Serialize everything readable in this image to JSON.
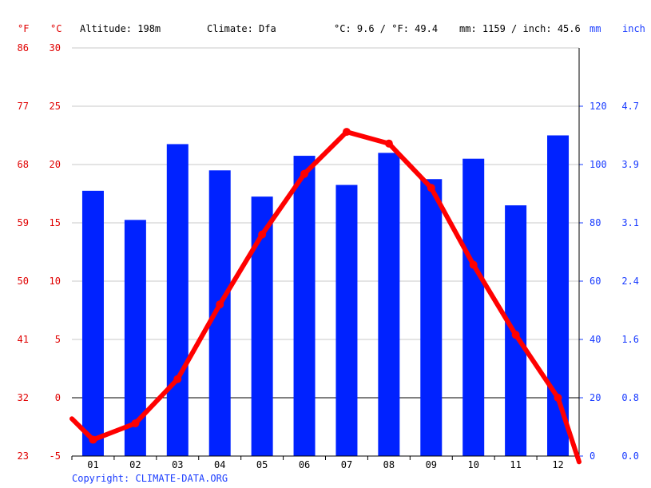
{
  "header": {
    "unit_f": "°F",
    "unit_c": "°C",
    "altitude": "Altitude: 198m",
    "climate": "Climate: Dfa",
    "temp_avg": "°C: 9.6 / °F: 49.4",
    "precip_total": "mm: 1159 / inch: 45.6",
    "unit_mm": "mm",
    "unit_inch": "inch"
  },
  "copyright": "Copyright: CLIMATE-DATA.ORG",
  "colors": {
    "temp_line": "#ff0000",
    "precip_bar": "#0022ff",
    "temp_axis": "#e00000",
    "precip_axis": "#1a3cff",
    "grid": "#c8c8c8"
  },
  "chart_data": {
    "type": "bar",
    "categories": [
      "01",
      "02",
      "03",
      "04",
      "05",
      "06",
      "07",
      "08",
      "09",
      "10",
      "11",
      "12"
    ],
    "series": [
      {
        "type": "bar",
        "axis": "right",
        "values": [
          91,
          81,
          107,
          98,
          89,
          103,
          93,
          104,
          95,
          102,
          86,
          110
        ]
      },
      {
        "type": "line",
        "axis": "left",
        "values": [
          -3.6,
          -2.2,
          1.6,
          8.0,
          14.0,
          19.2,
          22.8,
          21.8,
          18.0,
          11.4,
          5.4,
          0.0
        ]
      }
    ],
    "line_start": -1.8,
    "line_end": -5.5,
    "left_axis": {
      "ticks_c": [
        -5,
        0,
        5,
        10,
        15,
        20,
        25,
        30
      ],
      "ticks_f": [
        23,
        32,
        41,
        50,
        59,
        68,
        77,
        86
      ],
      "ylim": [
        -5,
        30
      ]
    },
    "right_axis": {
      "ticks_mm": [
        0,
        20,
        40,
        60,
        80,
        100,
        120
      ],
      "ticks_inch": [
        "0.0",
        "0.8",
        "1.6",
        "2.4",
        "3.1",
        "3.9",
        "4.7"
      ],
      "ylim": [
        0,
        140
      ]
    },
    "grid": true
  }
}
